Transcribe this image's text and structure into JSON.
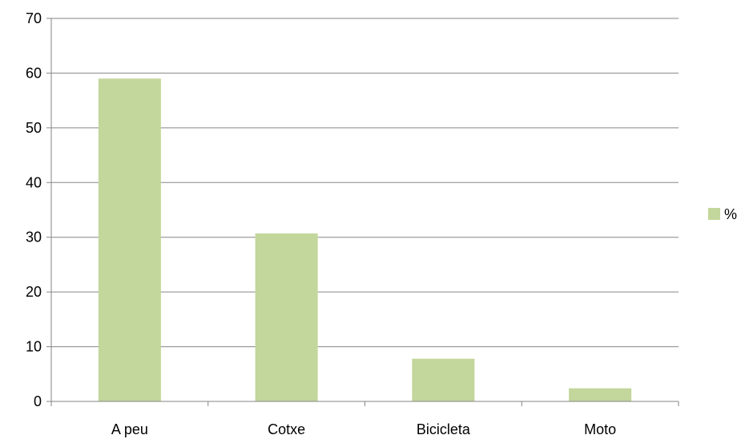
{
  "chart_data": {
    "type": "bar",
    "categories": [
      "A peu",
      "Cotxe",
      "Bicicleta",
      "Moto"
    ],
    "series": [
      {
        "name": "%",
        "values": [
          59,
          30.7,
          7.8,
          2.4
        ],
        "color": "#c3d69b"
      }
    ],
    "title": "",
    "xlabel": "",
    "ylabel": "",
    "ylim": [
      0,
      70
    ],
    "yticks": [
      0,
      10,
      20,
      30,
      40,
      50,
      60,
      70
    ],
    "grid": true,
    "legend": "right",
    "colors": {
      "bar": "#c3d69b",
      "grid": "#868686",
      "axis": "#868686"
    }
  }
}
